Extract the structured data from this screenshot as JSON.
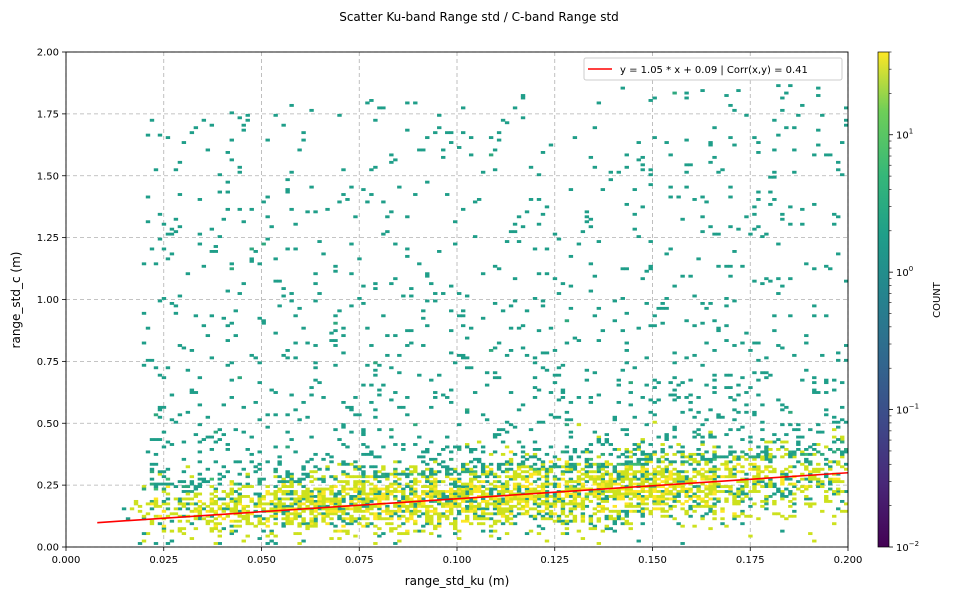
{
  "chart_data": {
    "type": "heatmap",
    "title": "Scatter Ku-band Range std / C-band Range std",
    "xlabel": "range_std_ku (m)",
    "ylabel": "range_std_c (m)",
    "xlim": [
      0.0,
      0.2
    ],
    "ylim": [
      0.0,
      2.0
    ],
    "x_ticks": [
      "0.000",
      "0.025",
      "0.050",
      "0.075",
      "0.100",
      "0.125",
      "0.150",
      "0.175",
      "0.200"
    ],
    "y_ticks": [
      "0.00",
      "0.25",
      "0.50",
      "0.75",
      "1.00",
      "1.25",
      "1.50",
      "1.75",
      "2.00"
    ],
    "grid": true,
    "colormap": "viridis",
    "colorbar": {
      "label": "COUNT",
      "scale": "log",
      "range": [
        0.01,
        40
      ],
      "ticks": [
        {
          "value": 0.01,
          "base": "10",
          "exp": "−2"
        },
        {
          "value": 0.1,
          "base": "10",
          "exp": "−1"
        },
        {
          "value": 1,
          "base": "10",
          "exp": "0"
        },
        {
          "value": 10,
          "base": "10",
          "exp": "1"
        }
      ]
    },
    "density": {
      "description": "dense core near y 0.10-0.30 for x 0.02-0.20, sparse tail up to y 1.7",
      "core_y_center_at_x": [
        [
          0.02,
          0.13
        ],
        [
          0.06,
          0.17
        ],
        [
          0.1,
          0.2
        ],
        [
          0.15,
          0.24
        ],
        [
          0.2,
          0.28
        ]
      ],
      "core_spread": 0.06,
      "outlier_y_max": 1.72
    },
    "fit_line": {
      "slope": 1.05,
      "intercept": 0.09,
      "x_range": [
        0.008,
        0.2
      ],
      "color": "#ff0000",
      "label": "y = 1.05 * x + 0.09 | Corr(x,y) = 0.41"
    },
    "legend_position": "top-right"
  }
}
